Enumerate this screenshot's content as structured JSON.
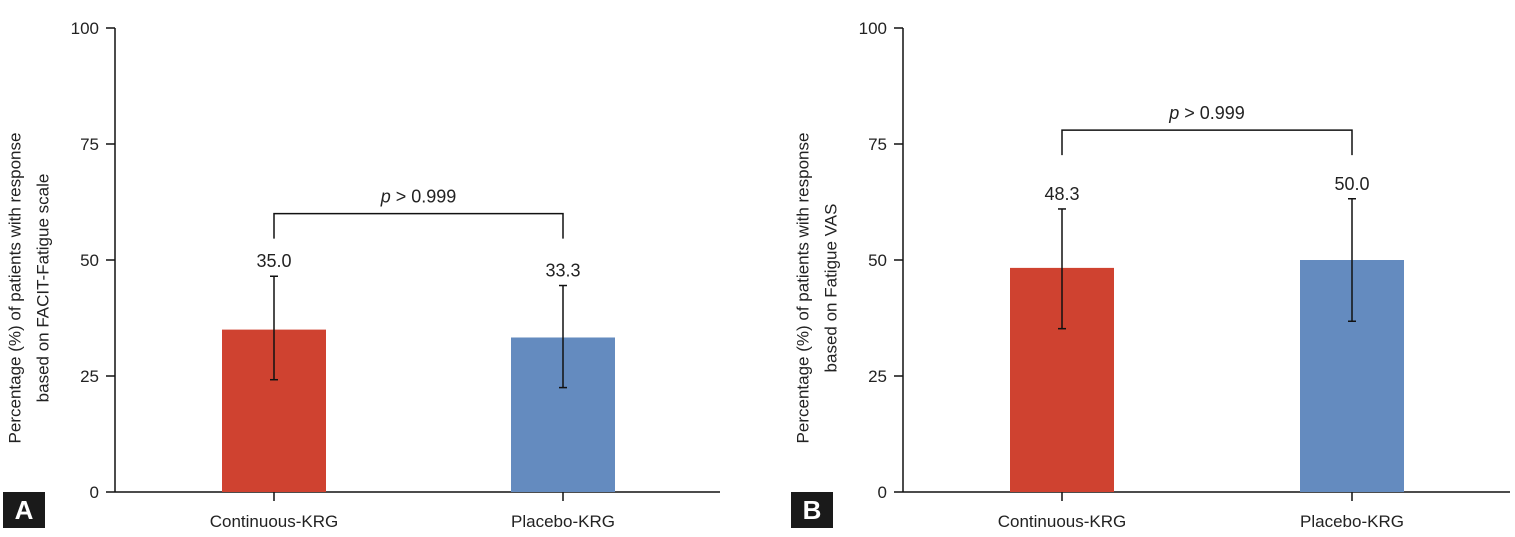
{
  "chart_data": [
    {
      "type": "bar",
      "panel_label": "A",
      "categories": [
        "Continuous-KRG",
        "Placebo-KRG"
      ],
      "values": [
        35.0,
        33.3
      ],
      "value_labels": [
        "35.0",
        "33.3"
      ],
      "error_bars": [
        {
          "low": 24.2,
          "high": 46.5
        },
        {
          "low": 22.5,
          "high": 44.5
        }
      ],
      "bar_colors": [
        "#cf4230",
        "#648bbf"
      ],
      "ylabel_lines": [
        "Percentage (%) of patients with response",
        "based on FACIT-Fatigue scale"
      ],
      "xlabel": "",
      "ylim": [
        0,
        100
      ],
      "yticks": [
        0,
        25,
        50,
        75,
        100
      ],
      "ytick_labels": [
        "0",
        "25",
        "50",
        "75",
        "100"
      ],
      "comparison": {
        "p_italic": "p",
        "p_rest": " > 0.999",
        "bracket_y": 60
      }
    },
    {
      "type": "bar",
      "panel_label": "B",
      "categories": [
        "Continuous-KRG",
        "Placebo-KRG"
      ],
      "values": [
        48.3,
        50.0
      ],
      "value_labels": [
        "48.3",
        "50.0"
      ],
      "error_bars": [
        {
          "low": 35.2,
          "high": 61.0
        },
        {
          "low": 36.8,
          "high": 63.2
        }
      ],
      "bar_colors": [
        "#cf4230",
        "#648bbf"
      ],
      "ylabel_lines": [
        "Percentage (%) of patients with response",
        "based on Fatigue VAS"
      ],
      "xlabel": "",
      "ylim": [
        0,
        100
      ],
      "yticks": [
        0,
        25,
        50,
        75,
        100
      ],
      "ytick_labels": [
        "0",
        "25",
        "50",
        "75",
        "100"
      ],
      "comparison": {
        "p_italic": "p",
        "p_rest": " > 0.999",
        "bracket_y": 78
      }
    }
  ]
}
